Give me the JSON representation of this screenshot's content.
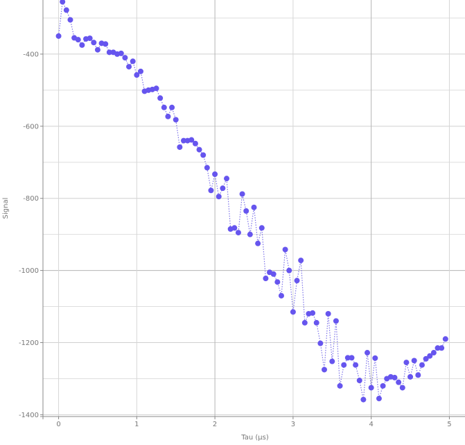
{
  "chart_data": {
    "type": "scatter",
    "title": "",
    "xlabel": "Tau (µs)",
    "ylabel": "Signal",
    "xlim": [
      -0.2,
      5.2
    ],
    "ylim": [
      -1405,
      -250
    ],
    "x_ticks": [
      0,
      1,
      2,
      3,
      4,
      5
    ],
    "x_tick_labels": [
      "0",
      "1",
      "2",
      "3",
      "4",
      "5"
    ],
    "y_ticks": [
      -1400,
      -1200,
      -1000,
      -800,
      -600,
      -400
    ],
    "y_tick_labels": [
      "-1400",
      "-1200",
      "-1000",
      "-800",
      "-600",
      "-400"
    ],
    "grid": true,
    "legend": "none",
    "colors": {
      "series": "#6655ee",
      "line": "#7a70e8",
      "grid_minor": "#dedede",
      "grid_major": "#b5b5b5",
      "axis": "#888888",
      "text": "#777777"
    },
    "series": [
      {
        "x": [
          0.0,
          0.05,
          0.1,
          0.15,
          0.2,
          0.25,
          0.3,
          0.35,
          0.4,
          0.45,
          0.5,
          0.55,
          0.6,
          0.65,
          0.7,
          0.75,
          0.8,
          0.85,
          0.9,
          0.95,
          1.0,
          1.05,
          1.1,
          1.15,
          1.2,
          1.25,
          1.3,
          1.35,
          1.4,
          1.45,
          1.5,
          1.55,
          1.6,
          1.65,
          1.7,
          1.75,
          1.8,
          1.85,
          1.9,
          1.95,
          2.0,
          2.05,
          2.1,
          2.15,
          2.2,
          2.25,
          2.3,
          2.35,
          2.4,
          2.45,
          2.5,
          2.55,
          2.6,
          2.65,
          2.7,
          2.75,
          2.8,
          2.85,
          2.9,
          2.95,
          3.0,
          3.05,
          3.1,
          3.15,
          3.2,
          3.25,
          3.3,
          3.35,
          3.4,
          3.45,
          3.5,
          3.55,
          3.6,
          3.65,
          3.7,
          3.75,
          3.8,
          3.85,
          3.9,
          3.95,
          4.0,
          4.05,
          4.1,
          4.15,
          4.2,
          4.25,
          4.3,
          4.35,
          4.4,
          4.45,
          4.5,
          4.55,
          4.6,
          4.65,
          4.7,
          4.75,
          4.8,
          4.85,
          4.9,
          4.95
        ],
        "y": [
          -350,
          -255,
          -278,
          -305,
          -355,
          -360,
          -375,
          -358,
          -356,
          -368,
          -388,
          -370,
          -372,
          -395,
          -395,
          -400,
          -398,
          -410,
          -435,
          -420,
          -458,
          -448,
          -503,
          -500,
          -498,
          -495,
          -522,
          -548,
          -573,
          -548,
          -582,
          -658,
          -640,
          -640,
          -638,
          -648,
          -665,
          -680,
          -715,
          -778,
          -733,
          -795,
          -772,
          -745,
          -885,
          -882,
          -895,
          -788,
          -835,
          -900,
          -825,
          -925,
          -882,
          -1022,
          -1005,
          -1010,
          -1032,
          -1070,
          -942,
          -1000,
          -1115,
          -1028,
          -972,
          -1145,
          -1120,
          -1118,
          -1145,
          -1202,
          -1275,
          -1120,
          -1252,
          -1140,
          -1320,
          -1262,
          -1242,
          -1242,
          -1262,
          -1305,
          -1358,
          -1228,
          -1325,
          -1243,
          -1355,
          -1320,
          -1300,
          -1295,
          -1297,
          -1310,
          -1325,
          -1255,
          -1295,
          -1250,
          -1290,
          -1262,
          -1245,
          -1237,
          -1228,
          -1215,
          -1215,
          -1190
        ]
      }
    ]
  }
}
